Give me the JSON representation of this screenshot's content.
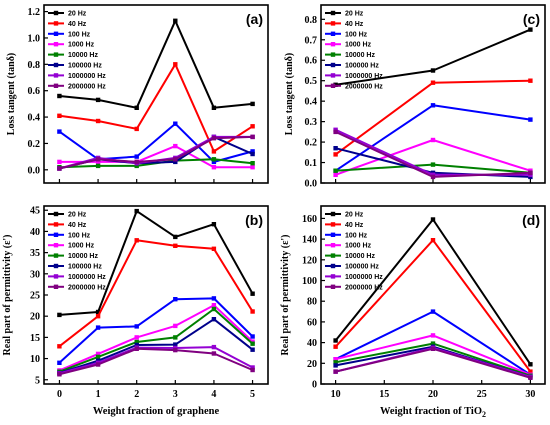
{
  "chart_data": [
    {
      "id": "a",
      "type": "line",
      "panel_label": "(a)",
      "ylabel": "Loss tangent (tanδ)",
      "xlabel": "",
      "x": [
        0,
        1,
        2,
        3,
        4,
        5
      ],
      "xticks": [],
      "ylim": [
        -0.1,
        1.25
      ],
      "yticks": [
        "0.0",
        "0.2",
        "0.4",
        "0.6",
        "0.8",
        "1.0",
        "1.2"
      ],
      "yticks_values": [
        0,
        0.2,
        0.4,
        0.6,
        0.8,
        1.0,
        1.2
      ],
      "series": [
        {
          "name": "20 Hz",
          "color": "#000000",
          "values": [
            0.56,
            0.53,
            0.47,
            1.13,
            0.47,
            0.5
          ]
        },
        {
          "name": "40 Hz",
          "color": "#ff0000",
          "values": [
            0.41,
            0.37,
            0.31,
            0.8,
            0.14,
            0.33
          ]
        },
        {
          "name": "100 Hz",
          "color": "#0000ff",
          "values": [
            0.29,
            0.08,
            0.1,
            0.35,
            0.06,
            0.14
          ]
        },
        {
          "name": "1000 Hz",
          "color": "#ff00ff",
          "values": [
            0.06,
            0.06,
            0.06,
            0.18,
            0.02,
            0.02
          ]
        },
        {
          "name": "10000 Hz",
          "color": "#008000",
          "values": [
            0.02,
            0.03,
            0.03,
            0.07,
            0.08,
            0.05
          ]
        },
        {
          "name": "100000 Hz",
          "color": "#00008b",
          "values": [
            0.01,
            0.08,
            0.05,
            0.06,
            0.25,
            0.12
          ]
        },
        {
          "name": "1000000 Hz",
          "color": "#9400d3",
          "values": [
            0.01,
            0.09,
            0.05,
            0.09,
            0.25,
            0.25
          ]
        },
        {
          "name": "2000000 Hz",
          "color": "#800080",
          "values": [
            0.01,
            0.08,
            0.06,
            0.08,
            0.24,
            0.25
          ]
        }
      ]
    },
    {
      "id": "b",
      "type": "line",
      "panel_label": "(b)",
      "ylabel": "Real part of permittivity (ε')",
      "xlabel": "Weight fraction of graphene",
      "x": [
        0,
        1,
        2,
        3,
        4,
        5
      ],
      "xticks": [
        "0",
        "1",
        "2",
        "3",
        "4",
        "5"
      ],
      "ylim": [
        4,
        46
      ],
      "yticks": [
        "5",
        "10",
        "15",
        "20",
        "25",
        "30",
        "35",
        "40",
        "45"
      ],
      "yticks_values": [
        5,
        10,
        15,
        20,
        25,
        30,
        35,
        40,
        45
      ],
      "series": [
        {
          "name": "20 Hz",
          "color": "#000000",
          "values": [
            20.3,
            21.0,
            44.8,
            38.7,
            41.7,
            25.3
          ]
        },
        {
          "name": "40 Hz",
          "color": "#ff0000",
          "values": [
            12.9,
            20.0,
            37.9,
            36.6,
            35.9,
            21.1
          ]
        },
        {
          "name": "100 Hz",
          "color": "#0000ff",
          "values": [
            9.0,
            17.3,
            17.6,
            24.0,
            24.2,
            15.2
          ]
        },
        {
          "name": "1000 Hz",
          "color": "#ff00ff",
          "values": [
            7.2,
            11.1,
            15.0,
            17.7,
            22.6,
            14.0
          ]
        },
        {
          "name": "10000 Hz",
          "color": "#008000",
          "values": [
            6.9,
            10.4,
            13.9,
            15.0,
            21.7,
            13.5
          ]
        },
        {
          "name": "100000 Hz",
          "color": "#00008b",
          "values": [
            6.6,
            9.5,
            13.2,
            13.3,
            19.3,
            12.1
          ]
        },
        {
          "name": "1000000 Hz",
          "color": "#9400d3",
          "values": [
            6.5,
            9.0,
            12.6,
            12.5,
            12.7,
            7.9
          ]
        },
        {
          "name": "2000000 Hz",
          "color": "#800080",
          "values": [
            6.3,
            8.6,
            12.3,
            12.0,
            11.2,
            7.3
          ]
        }
      ]
    },
    {
      "id": "c",
      "type": "line",
      "panel_label": "(c)",
      "ylabel": "Loss tangent (tanδ)",
      "xlabel": "",
      "x": [
        10,
        20,
        30
      ],
      "xticks": [],
      "ylim": [
        0.0,
        0.87
      ],
      "yticks": [
        "0.0",
        "0.1",
        "0.2",
        "0.3",
        "0.4",
        "0.5",
        "0.6",
        "0.7",
        "0.8"
      ],
      "yticks_values": [
        0,
        0.1,
        0.2,
        0.3,
        0.4,
        0.5,
        0.6,
        0.7,
        0.8
      ],
      "series": [
        {
          "name": "20 Hz",
          "color": "#000000",
          "values": [
            0.48,
            0.55,
            0.75
          ]
        },
        {
          "name": "40 Hz",
          "color": "#ff0000",
          "values": [
            0.14,
            0.49,
            0.5
          ]
        },
        {
          "name": "100 Hz",
          "color": "#0000ff",
          "values": [
            0.06,
            0.38,
            0.31
          ]
        },
        {
          "name": "1000 Hz",
          "color": "#ff00ff",
          "values": [
            0.04,
            0.21,
            0.06
          ]
        },
        {
          "name": "10000 Hz",
          "color": "#008000",
          "values": [
            0.06,
            0.09,
            0.05
          ]
        },
        {
          "name": "100000 Hz",
          "color": "#00008b",
          "values": [
            0.17,
            0.05,
            0.03
          ]
        },
        {
          "name": "1000000 Hz",
          "color": "#9400d3",
          "values": [
            0.26,
            0.04,
            0.04
          ]
        },
        {
          "name": "2000000 Hz",
          "color": "#800080",
          "values": [
            0.25,
            0.03,
            0.05
          ]
        }
      ]
    },
    {
      "id": "d",
      "type": "line",
      "panel_label": "(d)",
      "ylabel": "Real part of permittivity (ε')",
      "xlabel_main": "Weight fraction of TiO",
      "xlabel_sub": "2",
      "x": [
        10,
        20,
        30
      ],
      "xticks": [
        "10",
        "15",
        "20",
        "25",
        "30"
      ],
      "xticks_values": [
        10,
        15,
        20,
        25,
        30
      ],
      "ylim": [
        0,
        172
      ],
      "yticks": [
        "0",
        "20",
        "40",
        "60",
        "80",
        "100",
        "120",
        "140",
        "160"
      ],
      "yticks_values": [
        0,
        20,
        40,
        60,
        80,
        100,
        120,
        140,
        160
      ],
      "series": [
        {
          "name": "20 Hz",
          "color": "#000000",
          "values": [
            42,
            159,
            19
          ]
        },
        {
          "name": "40 Hz",
          "color": "#ff0000",
          "values": [
            36,
            139,
            12
          ]
        },
        {
          "name": "100 Hz",
          "color": "#0000ff",
          "values": [
            24,
            70,
            9
          ]
        },
        {
          "name": "1000 Hz",
          "color": "#ff00ff",
          "values": [
            24,
            47,
            9
          ]
        },
        {
          "name": "10000 Hz",
          "color": "#008000",
          "values": [
            21,
            39,
            8
          ]
        },
        {
          "name": "100000 Hz",
          "color": "#00008b",
          "values": [
            18,
            36,
            7
          ]
        },
        {
          "name": "1000000 Hz",
          "color": "#9400d3",
          "values": [
            12,
            35,
            7
          ]
        },
        {
          "name": "2000000 Hz",
          "color": "#800080",
          "values": [
            12,
            34,
            6
          ]
        }
      ]
    }
  ]
}
